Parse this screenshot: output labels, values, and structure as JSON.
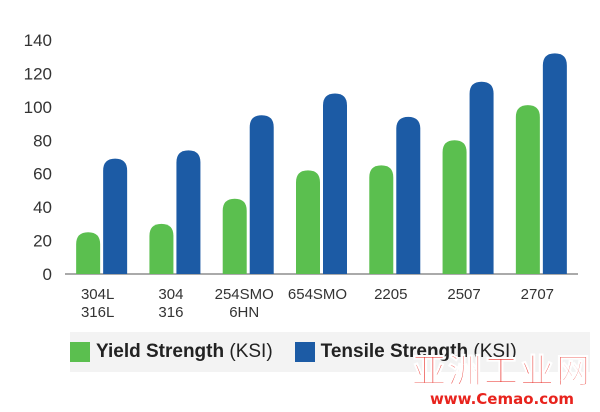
{
  "chart_data": {
    "type": "bar",
    "categories": [
      [
        "304L",
        "316L"
      ],
      [
        "304",
        "316"
      ],
      [
        "254SMO",
        "6HN"
      ],
      [
        "654SMO"
      ],
      [
        "2205"
      ],
      [
        "2507"
      ],
      [
        "2707"
      ]
    ],
    "series": [
      {
        "name": "Yield Strength (KSI)",
        "bold": "Yield Strength",
        "suffix": " (KSI)",
        "color": "#5bbf4f",
        "values": [
          25,
          30,
          45,
          62,
          65,
          80,
          101
        ]
      },
      {
        "name": "Tensile Strength (KSI)",
        "bold": "Tensile Strength",
        "suffix": " (KSI)",
        "color": "#1c5ba5",
        "values": [
          69,
          74,
          95,
          108,
          94,
          115,
          132
        ]
      }
    ],
    "yticks": [
      0,
      20,
      40,
      60,
      80,
      100,
      120,
      140
    ],
    "ylim": [
      0,
      140
    ],
    "grid": false,
    "legend_position": "bottom"
  },
  "watermark": {
    "text": "亚洲工业网",
    "url": "www.Cemao.com"
  }
}
